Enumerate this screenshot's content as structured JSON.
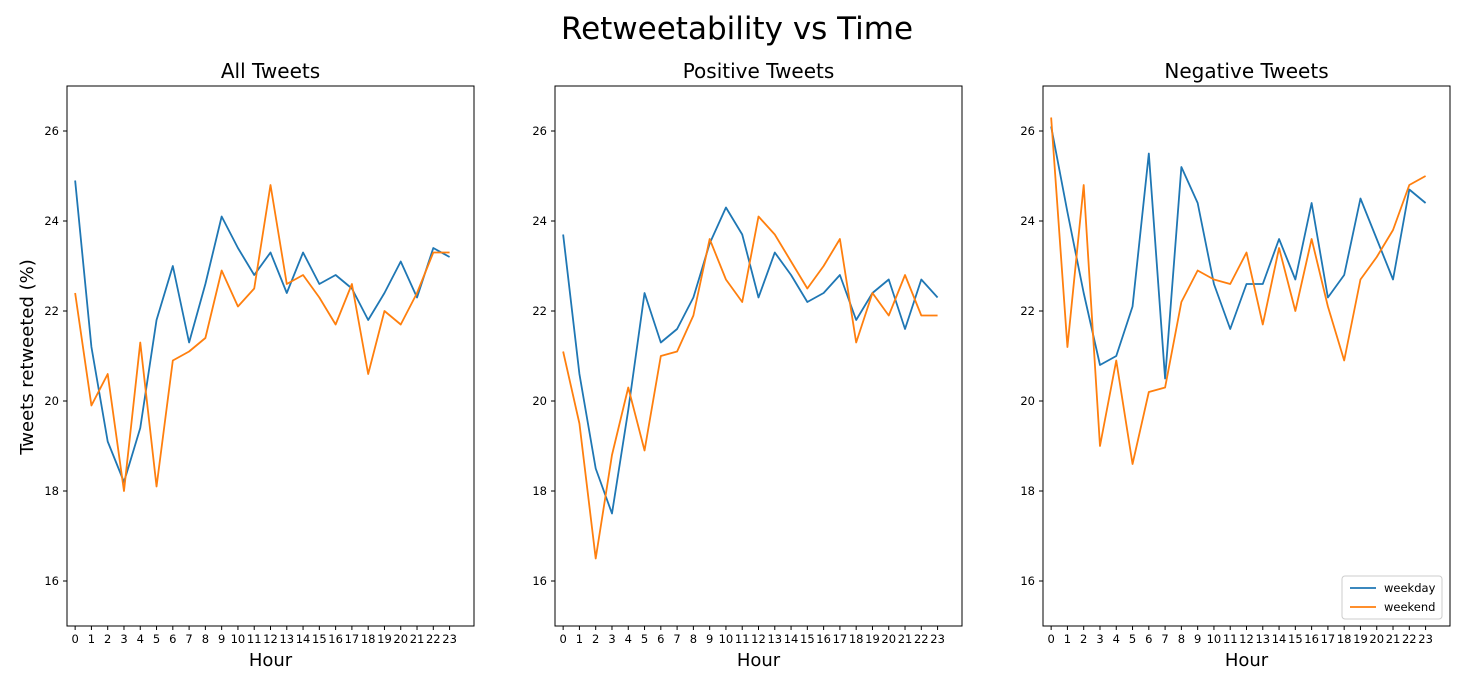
{
  "figure": {
    "title": "Retweetability vs Time",
    "ylabel": "Tweets retweeted (%)"
  },
  "colors": {
    "weekday": "#1f77b4",
    "weekend": "#ff7f0e"
  },
  "legend": {
    "placement": "lower-right",
    "entries": [
      "weekday",
      "weekend"
    ]
  },
  "chart_data": [
    {
      "type": "line",
      "title": "All Tweets",
      "xlabel": "Hour",
      "ylabel": "Tweets retweeted (%)",
      "x": [
        0,
        1,
        2,
        3,
        4,
        5,
        6,
        7,
        8,
        9,
        10,
        11,
        12,
        13,
        14,
        15,
        16,
        17,
        18,
        19,
        20,
        21,
        22,
        23
      ],
      "xlim": [
        -0.5,
        24.5
      ],
      "ylim": [
        15,
        27
      ],
      "yticks": [
        16,
        18,
        20,
        22,
        24,
        26
      ],
      "grid": false,
      "series": [
        {
          "name": "weekday",
          "values": [
            24.9,
            21.2,
            19.1,
            18.2,
            19.4,
            21.8,
            23.0,
            21.3,
            22.6,
            24.1,
            23.4,
            22.8,
            23.3,
            22.4,
            23.3,
            22.6,
            22.8,
            22.5,
            21.8,
            22.4,
            23.1,
            22.3,
            23.4,
            23.2
          ]
        },
        {
          "name": "weekend",
          "values": [
            22.4,
            19.9,
            20.6,
            18.0,
            21.3,
            18.1,
            20.9,
            21.1,
            21.4,
            22.9,
            22.1,
            22.5,
            24.8,
            22.6,
            22.8,
            22.3,
            21.7,
            22.6,
            20.6,
            22.0,
            21.7,
            22.4,
            23.3,
            23.3
          ]
        }
      ]
    },
    {
      "type": "line",
      "title": "Positive Tweets",
      "xlabel": "Hour",
      "x": [
        0,
        1,
        2,
        3,
        4,
        5,
        6,
        7,
        8,
        9,
        10,
        11,
        12,
        13,
        14,
        15,
        16,
        17,
        18,
        19,
        20,
        21,
        22,
        23
      ],
      "xlim": [
        -0.5,
        24.5
      ],
      "ylim": [
        15,
        27
      ],
      "yticks": [
        16,
        18,
        20,
        22,
        24,
        26
      ],
      "grid": false,
      "series": [
        {
          "name": "weekday",
          "values": [
            23.7,
            20.6,
            18.5,
            17.5,
            19.8,
            22.4,
            21.3,
            21.6,
            22.3,
            23.5,
            24.3,
            23.7,
            22.3,
            23.3,
            22.8,
            22.2,
            22.4,
            22.8,
            21.8,
            22.4,
            22.7,
            21.6,
            22.7,
            22.3
          ]
        },
        {
          "name": "weekend",
          "values": [
            21.1,
            19.5,
            16.5,
            18.8,
            20.3,
            18.9,
            21.0,
            21.1,
            21.9,
            23.6,
            22.7,
            22.2,
            24.1,
            23.7,
            23.1,
            22.5,
            23.0,
            23.6,
            21.3,
            22.4,
            21.9,
            22.8,
            21.9,
            21.9
          ]
        }
      ]
    },
    {
      "type": "line",
      "title": "Negative Tweets",
      "xlabel": "Hour",
      "x": [
        0,
        1,
        2,
        3,
        4,
        5,
        6,
        7,
        8,
        9,
        10,
        11,
        12,
        13,
        14,
        15,
        16,
        17,
        18,
        19,
        20,
        21,
        22,
        23
      ],
      "xlim": [
        -0.5,
        24.5
      ],
      "ylim": [
        15,
        27
      ],
      "yticks": [
        16,
        18,
        20,
        22,
        24,
        26
      ],
      "grid": false,
      "series": [
        {
          "name": "weekday",
          "values": [
            26.1,
            24.2,
            22.4,
            20.8,
            21.0,
            22.1,
            25.5,
            20.5,
            25.2,
            24.4,
            22.6,
            21.6,
            22.6,
            22.6,
            23.6,
            22.7,
            24.4,
            22.3,
            22.8,
            24.5,
            23.6,
            22.7,
            24.7,
            24.4
          ]
        },
        {
          "name": "weekend",
          "values": [
            26.3,
            21.2,
            24.8,
            19.0,
            20.9,
            18.6,
            20.2,
            20.3,
            22.2,
            22.9,
            22.7,
            22.6,
            23.3,
            21.7,
            23.4,
            22.0,
            23.6,
            22.1,
            20.9,
            22.7,
            23.2,
            23.8,
            24.8,
            25.0
          ]
        }
      ]
    }
  ]
}
